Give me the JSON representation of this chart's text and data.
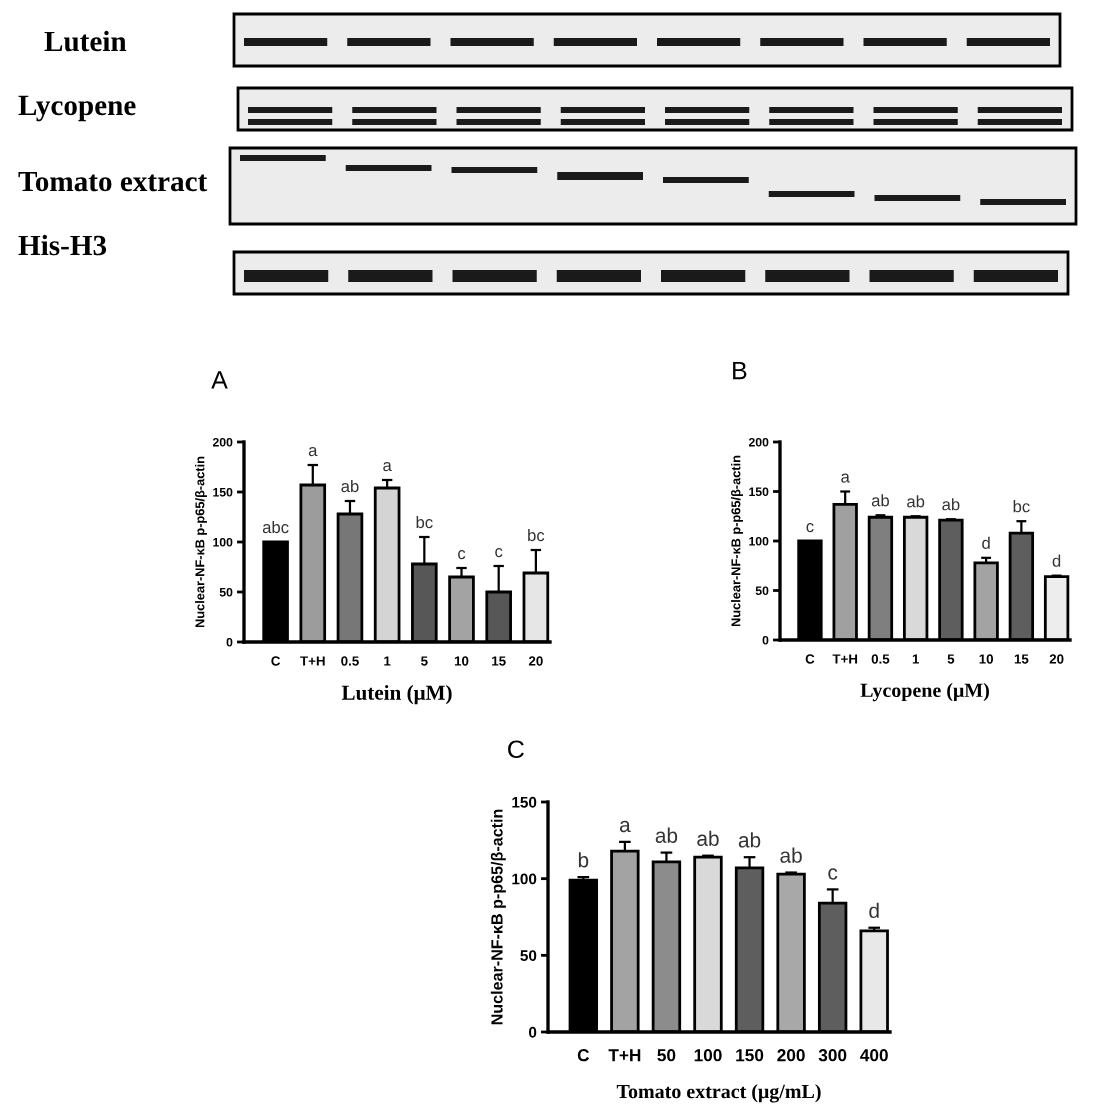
{
  "chart_data": [
    {
      "type": "other",
      "annotations": [
        "Lutein",
        "Lycopene",
        "Tomato extract",
        "His-H3"
      ]
    },
    {
      "type": "bar",
      "title": "A",
      "xlabel": "Lutein (μM)",
      "ylabel": "Nuclear-NF-κB p-p65/β-actin",
      "categories": [
        "C",
        "T+H",
        "0.5",
        "1",
        "5",
        "10",
        "15",
        "20"
      ],
      "values": [
        100,
        157,
        128,
        154,
        78,
        65,
        50,
        69
      ],
      "colors": [
        "#000000",
        "#9c9c9c",
        "#777777",
        "#d4d4d4",
        "#575757",
        "#a3a3a3",
        "#575757",
        "#e6e6e6"
      ],
      "errors": [
        null,
        [
          157,
          177
        ],
        [
          128,
          141
        ],
        [
          154,
          162
        ],
        [
          78,
          105
        ],
        [
          65,
          74
        ],
        [
          50,
          76
        ],
        [
          69,
          92
        ]
      ],
      "value_labels": [
        "abc",
        "a",
        "ab",
        "a",
        "bc",
        "c",
        "c",
        "bc"
      ],
      "ylim": [
        0,
        200
      ],
      "yticks": [
        0,
        50,
        100,
        150,
        200
      ]
    },
    {
      "type": "bar",
      "title": "B",
      "xlabel": "Lycopene (μM)",
      "ylabel": "Nuclear-NF-κB p-p65/β-actin",
      "categories": [
        "C",
        "T+H",
        "0.5",
        "1",
        "5",
        "10",
        "15",
        "20"
      ],
      "values": [
        100,
        137,
        124,
        124,
        121,
        78,
        108,
        64
      ],
      "colors": [
        "#000000",
        "#a0a0a0",
        "#7f7f7f",
        "#d9d9d9",
        "#5e5e5e",
        "#a3a3a3",
        "#5e5e5e",
        "#ededed"
      ],
      "errors": [
        null,
        [
          137,
          150
        ],
        [
          124,
          126
        ],
        [
          124,
          125
        ],
        [
          121,
          122
        ],
        [
          78,
          83
        ],
        [
          108,
          120
        ],
        [
          64,
          65
        ]
      ],
      "value_labels": [
        "c",
        "a",
        "ab",
        "ab",
        "ab",
        "d",
        "bc",
        "d"
      ],
      "ylim": [
        0,
        200
      ],
      "yticks": [
        0,
        50,
        100,
        150,
        200
      ]
    },
    {
      "type": "bar",
      "title": "C",
      "xlabel": "Tomato extract (μg/mL)",
      "ylabel": "Nuclear-NF-κB p-p65/β-actin",
      "categories": [
        "C",
        "T+H",
        "50",
        "100",
        "150",
        "200",
        "300",
        "400"
      ],
      "values": [
        99,
        118,
        111,
        114,
        107,
        103,
        84,
        66
      ],
      "colors": [
        "#000000",
        "#a3a3a3",
        "#8c8c8c",
        "#d9d9d9",
        "#5e5e5e",
        "#a8a8a8",
        "#5e5e5e",
        "#e8e8e8"
      ],
      "errors": [
        [
          99,
          101
        ],
        [
          118,
          124
        ],
        [
          111,
          117
        ],
        [
          114,
          115
        ],
        [
          107,
          114
        ],
        [
          103,
          104
        ],
        [
          84,
          93
        ],
        [
          66,
          68
        ]
      ],
      "value_labels": [
        "b",
        "a",
        "ab",
        "ab",
        "ab",
        "ab",
        "c",
        "d"
      ],
      "ylim": [
        0,
        150
      ],
      "yticks": [
        0,
        50,
        100,
        150
      ]
    }
  ]
}
